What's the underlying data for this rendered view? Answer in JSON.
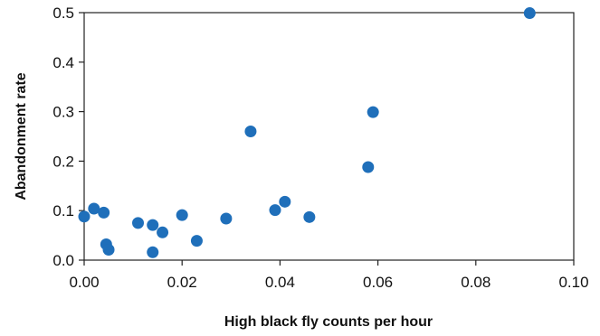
{
  "chart_data": {
    "type": "scatter",
    "title": "",
    "xlabel": "High black fly counts per hour",
    "ylabel": "Abandonment rate",
    "xlim": [
      0,
      0.1
    ],
    "ylim": [
      0,
      0.5
    ],
    "grid": false,
    "x_ticks": [
      "0.00",
      "0.02",
      "0.04",
      "0.06",
      "0.08",
      "0.10"
    ],
    "y_ticks": [
      "0.0",
      "0.1",
      "0.2",
      "0.3",
      "0.4",
      "0.5"
    ],
    "marker_color": "#1f6fba",
    "series": [
      {
        "points": [
          {
            "x": 0.0,
            "y": 0.088
          },
          {
            "x": 0.002,
            "y": 0.104
          },
          {
            "x": 0.004,
            "y": 0.096
          },
          {
            "x": 0.0045,
            "y": 0.032
          },
          {
            "x": 0.005,
            "y": 0.021
          },
          {
            "x": 0.011,
            "y": 0.075
          },
          {
            "x": 0.014,
            "y": 0.071
          },
          {
            "x": 0.014,
            "y": 0.016
          },
          {
            "x": 0.016,
            "y": 0.056
          },
          {
            "x": 0.02,
            "y": 0.091
          },
          {
            "x": 0.023,
            "y": 0.039
          },
          {
            "x": 0.029,
            "y": 0.084
          },
          {
            "x": 0.034,
            "y": 0.26
          },
          {
            "x": 0.039,
            "y": 0.101
          },
          {
            "x": 0.041,
            "y": 0.118
          },
          {
            "x": 0.046,
            "y": 0.087
          },
          {
            "x": 0.058,
            "y": 0.188
          },
          {
            "x": 0.059,
            "y": 0.299
          },
          {
            "x": 0.091,
            "y": 0.499
          }
        ]
      }
    ]
  }
}
